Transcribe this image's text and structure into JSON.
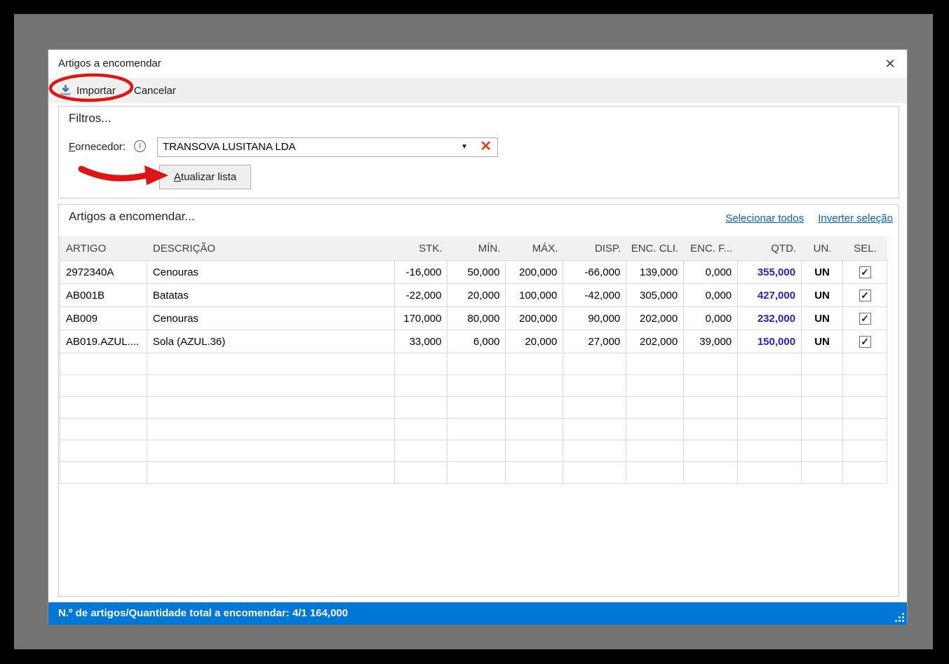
{
  "window": {
    "title": "Artigos a encomendar",
    "close_glyph": "✕"
  },
  "toolbar": {
    "importar_label": "Importar",
    "cancelar_label": "Cancelar"
  },
  "filters": {
    "legend": "Filtros...",
    "fornecedor_accel": "F",
    "fornecedor_rest": "ornecedor:",
    "info_glyph": "i",
    "fornecedor_value": "TRANSOVA LUSITANA LDA",
    "combo_arrow": "▼",
    "combo_clear": "✕",
    "atualizar_accel": "A",
    "atualizar_rest": "tualizar lista"
  },
  "items": {
    "legend": "Artigos a encomendar...",
    "select_all_link": "Selecionar todos",
    "invert_link": "Inverter seleção",
    "columns": [
      "ARTIGO",
      "DESCRIÇÃO",
      "STK.",
      "MÍN.",
      "MÁX.",
      "DISP.",
      "ENC. CLI.",
      "ENC. F...",
      "QTD.",
      "UN.",
      "SEL."
    ],
    "rows": [
      {
        "artigo": "2972340A",
        "descricao": "Cenouras",
        "stk": "-16,000",
        "min": "50,000",
        "max": "200,000",
        "disp": "-66,000",
        "enc_cli": "139,000",
        "enc_f": "0,000",
        "qtd": "355,000",
        "un": "UN",
        "sel": true
      },
      {
        "artigo": "AB001B",
        "descricao": "Batatas",
        "stk": "-22,000",
        "min": "20,000",
        "max": "100,000",
        "disp": "-42,000",
        "enc_cli": "305,000",
        "enc_f": "0,000",
        "qtd": "427,000",
        "un": "UN",
        "sel": true
      },
      {
        "artigo": "AB009",
        "descricao": "Cenouras",
        "stk": "170,000",
        "min": "80,000",
        "max": "200,000",
        "disp": "90,000",
        "enc_cli": "202,000",
        "enc_f": "0,000",
        "qtd": "232,000",
        "un": "UN",
        "sel": true
      },
      {
        "artigo": "AB019.AZUL....",
        "descricao": "Sola (AZUL.36)",
        "stk": "33,000",
        "min": "6,000",
        "max": "20,000",
        "disp": "27,000",
        "enc_cli": "202,000",
        "enc_f": "39,000",
        "qtd": "150,000",
        "un": "UN",
        "sel": true
      }
    ],
    "empty_row_count": 6,
    "check_glyph": "✓"
  },
  "statusbar": {
    "text": "N.º de artigos/Quantidade total a encomendar: 4/1 164,000"
  },
  "colors": {
    "status_blue": "#0078D7",
    "qtd_blue": "#2222D2",
    "link_blue": "#0563C1",
    "annotation_red": "#E01414",
    "clear_x_red": "#E2401B",
    "import_icon_blue": "#2E76C0"
  }
}
